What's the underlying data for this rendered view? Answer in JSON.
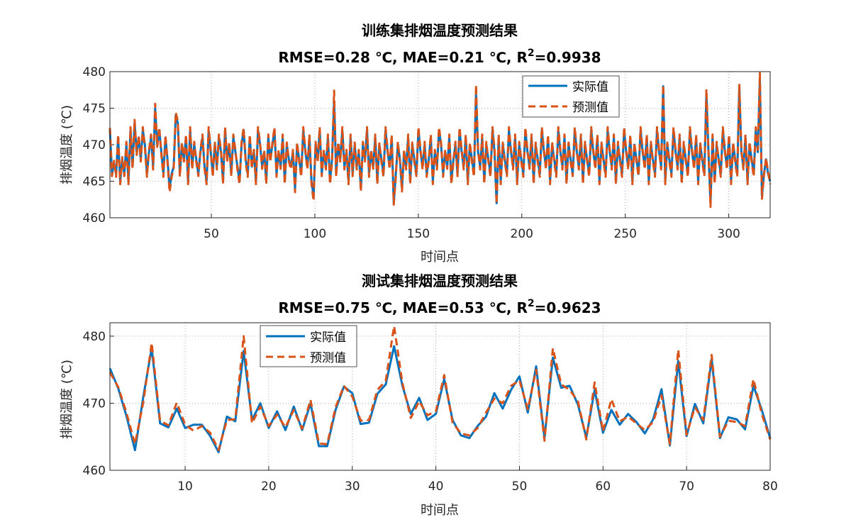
{
  "chart_data": [
    {
      "type": "line",
      "title": "训练集排烟温度预测结果",
      "subtitle_parts": {
        "prefix": "RMSE=0.28 ℃,  MAE=0.21 ℃,  R",
        "sup": "2",
        "suffix": "=0.9938"
      },
      "xlabel": "时间点",
      "ylabel": "排烟温度 (℃)",
      "xlim": [
        1,
        320
      ],
      "ylim": [
        460,
        480
      ],
      "xticks": [
        50,
        100,
        150,
        200,
        250,
        300
      ],
      "yticks": [
        460,
        465,
        470,
        475,
        480
      ],
      "grid": true,
      "legend_position": "top-right",
      "series": [
        {
          "name": "实际值",
          "color": "#0072BD",
          "style": "solid",
          "values": [
            472,
            466,
            467.5,
            466,
            471,
            465,
            468,
            466,
            470,
            465,
            472,
            467,
            473,
            469,
            471,
            468,
            472,
            470,
            466,
            469,
            471,
            467,
            475,
            470,
            472,
            469,
            466,
            471,
            468,
            464,
            466,
            467,
            474,
            473,
            466,
            470,
            468,
            471,
            465,
            472,
            467,
            470,
            468,
            466,
            469,
            471,
            467,
            465,
            472,
            469,
            466,
            470,
            467,
            471,
            469,
            465,
            472,
            468,
            470,
            466,
            471,
            469,
            467,
            465,
            470,
            472,
            468,
            466,
            471,
            467,
            469,
            465,
            472,
            470,
            467,
            469,
            465,
            471,
            468,
            470,
            472,
            466,
            469,
            467,
            471,
            465,
            470,
            468,
            467,
            469,
            464,
            470,
            468,
            466,
            472,
            469,
            467,
            471,
            465,
            463,
            470,
            468,
            472,
            466,
            469,
            467,
            471,
            465,
            468,
            476,
            466,
            470,
            468,
            472,
            467,
            469,
            465,
            471,
            466,
            470,
            467,
            469,
            464,
            470,
            468,
            472,
            466,
            469,
            467,
            471,
            465,
            470,
            468,
            466,
            472,
            469,
            467,
            471,
            462,
            466,
            470,
            468,
            464,
            469,
            467,
            471,
            465,
            470,
            468,
            466,
            472,
            469,
            467,
            470,
            466,
            468,
            471,
            465,
            469,
            467,
            472,
            470,
            466,
            469,
            467,
            471,
            465,
            468,
            470,
            466,
            472,
            469,
            467,
            471,
            465,
            470,
            468,
            466,
            477,
            469,
            467,
            471,
            465,
            470,
            468,
            466,
            472,
            469,
            462,
            471,
            465,
            470,
            468,
            466,
            472,
            469,
            467,
            471,
            465,
            470,
            468,
            466,
            472,
            469,
            467,
            471,
            465,
            470,
            468,
            466,
            472,
            469,
            467,
            471,
            465,
            470,
            468,
            466,
            472,
            469,
            467,
            471,
            465,
            470,
            468,
            466,
            472,
            469,
            467,
            471,
            465,
            470,
            468,
            466,
            472,
            469,
            467,
            471,
            465,
            470,
            468,
            466,
            472,
            469,
            467,
            471,
            465,
            470,
            468,
            466,
            472,
            469,
            467,
            471,
            465,
            470,
            468,
            466,
            472,
            469,
            467,
            471,
            465,
            470,
            468,
            466,
            472,
            469,
            467,
            478,
            465,
            470,
            468,
            466,
            472,
            469,
            467,
            471,
            465,
            470,
            468,
            466,
            472,
            469,
            467,
            471,
            465,
            470,
            468,
            466,
            477,
            469,
            462,
            471,
            465,
            470,
            468,
            466,
            472,
            469,
            467,
            471,
            465,
            470,
            468,
            466,
            478,
            469,
            467,
            471,
            465,
            470,
            468,
            466,
            472,
            469,
            479,
            463,
            466,
            468,
            466,
            465
          ]
        },
        {
          "name": "预测值",
          "color": "#D95319",
          "style": "dashed",
          "values": [
            472.3,
            465.7,
            467.8,
            465.6,
            471.4,
            464.6,
            468.3,
            465.7,
            470.4,
            464.6,
            472.4,
            466.7,
            473.4,
            468.6,
            471.3,
            467.7,
            472.4,
            469.6,
            465.6,
            469.3,
            471.4,
            466.6,
            475.6,
            469.7,
            472.4,
            468.6,
            465.6,
            471.3,
            467.6,
            463.5,
            465.6,
            466.7,
            474.4,
            473.3,
            465.6,
            470.3,
            467.7,
            471.4,
            464.6,
            472.4,
            466.6,
            470.4,
            467.6,
            465.7,
            469.3,
            471.4,
            466.7,
            464.6,
            472.4,
            469.3,
            465.6,
            470.4,
            466.6,
            471.4,
            469.3,
            464.6,
            472.4,
            467.7,
            470.3,
            465.7,
            471.4,
            469.3,
            466.6,
            464.6,
            470.4,
            472.3,
            467.6,
            465.6,
            471.4,
            466.7,
            469.3,
            464.6,
            472.4,
            470.3,
            466.7,
            469.3,
            464.6,
            471.4,
            467.6,
            470.3,
            472.4,
            465.6,
            469.3,
            466.7,
            471.4,
            464.6,
            470.3,
            467.7,
            466.6,
            469.3,
            463.5,
            470.3,
            467.7,
            465.6,
            472.4,
            469.3,
            466.6,
            471.4,
            464.6,
            462.3,
            470.4,
            467.6,
            472.4,
            465.7,
            469.3,
            466.6,
            471.4,
            464.6,
            467.6,
            477.4,
            465.6,
            470.4,
            467.7,
            472.4,
            466.6,
            469.3,
            464.6,
            471.4,
            465.7,
            470.3,
            466.6,
            469.3,
            463.6,
            470.4,
            467.7,
            472.4,
            465.6,
            469.3,
            466.7,
            471.4,
            464.6,
            470.3,
            467.6,
            465.6,
            472.4,
            469.3,
            466.6,
            471.4,
            461.8,
            465.6,
            470.4,
            467.7,
            463.6,
            469.3,
            466.6,
            471.4,
            464.6,
            470.3,
            467.6,
            465.7,
            472.4,
            469.3,
            466.6,
            470.4,
            465.6,
            467.7,
            471.4,
            464.6,
            469.3,
            466.6,
            472.4,
            470.3,
            465.6,
            469.3,
            466.7,
            471.4,
            464.6,
            467.6,
            470.4,
            465.7,
            472.4,
            469.3,
            466.6,
            471.4,
            464.6,
            470.3,
            467.6,
            465.6,
            478.2,
            469.3,
            466.6,
            471.4,
            464.6,
            470.4,
            467.7,
            465.6,
            472.4,
            469.3,
            461.9,
            471.4,
            464.6,
            470.3,
            467.6,
            465.7,
            472.4,
            469.3,
            466.6,
            471.4,
            464.6,
            470.4,
            467.7,
            465.6,
            472.4,
            469.3,
            466.7,
            471.4,
            464.6,
            470.3,
            467.6,
            465.6,
            472.4,
            469.3,
            466.6,
            471.4,
            464.6,
            470.4,
            467.7,
            465.6,
            472.4,
            469.3,
            466.6,
            471.4,
            464.6,
            470.3,
            467.6,
            465.7,
            472.4,
            469.3,
            466.6,
            471.4,
            464.6,
            470.4,
            467.7,
            465.6,
            472.4,
            469.3,
            466.6,
            471.4,
            464.6,
            470.3,
            467.6,
            465.6,
            472.4,
            469.3,
            466.6,
            471.4,
            464.6,
            470.4,
            467.7,
            465.6,
            472.4,
            469.3,
            466.6,
            471.4,
            464.6,
            470.3,
            467.6,
            465.7,
            472.4,
            469.3,
            466.6,
            471.4,
            464.6,
            470.4,
            467.7,
            465.6,
            472.4,
            469.3,
            466.6,
            478.2,
            464.6,
            470.3,
            467.6,
            465.6,
            472.4,
            469.3,
            466.6,
            471.4,
            464.6,
            470.4,
            467.7,
            465.6,
            472.4,
            469.3,
            466.6,
            471.4,
            464.6,
            470.3,
            467.6,
            465.7,
            477.6,
            469.3,
            461.5,
            471.4,
            464.6,
            470.4,
            467.7,
            465.6,
            472.4,
            469.3,
            466.6,
            471.4,
            464.6,
            470.3,
            467.6,
            465.6,
            478.2,
            469.3,
            466.6,
            471.4,
            464.6,
            470.4,
            467.7,
            465.6,
            472.4,
            469.3,
            479.8,
            462.6,
            465.8,
            468.2,
            466.3,
            464.6
          ]
        }
      ]
    },
    {
      "type": "line",
      "title": "测试集排烟温度预测结果",
      "subtitle_parts": {
        "prefix": "RMSE=0.75 ℃,  MAE=0.53 ℃,  R",
        "sup": "2",
        "suffix": "=0.9623"
      },
      "xlabel": "时间点",
      "ylabel": "排烟温度 (℃)",
      "xlim": [
        1,
        80
      ],
      "ylim": [
        460,
        482
      ],
      "xticks": [
        10,
        20,
        30,
        40,
        50,
        60,
        70,
        80
      ],
      "yticks": [
        460,
        470,
        480
      ],
      "grid": true,
      "legend_position": "top-left",
      "series": [
        {
          "name": "实际值",
          "color": "#0072BD",
          "style": "solid",
          "values": [
            475.2,
            472.2,
            468.0,
            463.0,
            471.0,
            478.2,
            467.0,
            466.4,
            469.2,
            466.3,
            466.8,
            466.8,
            465.1,
            462.7,
            468.0,
            467.3,
            477.8,
            467.5,
            470.0,
            466.3,
            468.8,
            466.0,
            469.5,
            466.0,
            470.0,
            463.6,
            463.6,
            469.0,
            472.5,
            471.5,
            466.9,
            467.1,
            471.4,
            472.8,
            478.5,
            472.6,
            468.4,
            470.8,
            467.5,
            468.4,
            473.6,
            467.5,
            465.2,
            464.8,
            466.6,
            468.0,
            471.5,
            469.2,
            472.0,
            474.0,
            468.6,
            475.5,
            464.8,
            476.8,
            472.3,
            472.6,
            469.8,
            464.9,
            472.0,
            465.6,
            469.0,
            466.8,
            468.4,
            467.2,
            465.5,
            467.6,
            472.1,
            463.7,
            476.3,
            465.1,
            469.9,
            467.0,
            476.6,
            464.8,
            467.9,
            467.6,
            466.1,
            472.6,
            469.0,
            464.8
          ]
        },
        {
          "name": "预测值",
          "color": "#D95319",
          "style": "dashed",
          "values": [
            474.6,
            472.4,
            468.5,
            463.9,
            470.2,
            479.0,
            467.4,
            466.7,
            470.1,
            466.8,
            465.9,
            466.6,
            465.6,
            463.0,
            467.5,
            467.6,
            480.0,
            467.0,
            469.5,
            466.6,
            468.3,
            466.4,
            469.0,
            466.2,
            470.5,
            464.0,
            463.9,
            469.4,
            472.6,
            471.0,
            467.4,
            467.5,
            472.0,
            473.3,
            481.5,
            473.0,
            467.8,
            470.3,
            468.2,
            468.8,
            474.2,
            467.1,
            465.5,
            465.2,
            466.3,
            468.6,
            470.7,
            470.0,
            472.6,
            473.4,
            469.1,
            475.0,
            464.4,
            478.2,
            472.8,
            472.0,
            470.3,
            464.6,
            473.1,
            465.8,
            470.6,
            467.3,
            468.0,
            467.0,
            466.0,
            467.2,
            471.2,
            463.9,
            478.0,
            465.3,
            469.4,
            467.5,
            477.2,
            465.0,
            467.4,
            467.2,
            466.6,
            473.6,
            468.4,
            464.6
          ]
        }
      ]
    }
  ]
}
